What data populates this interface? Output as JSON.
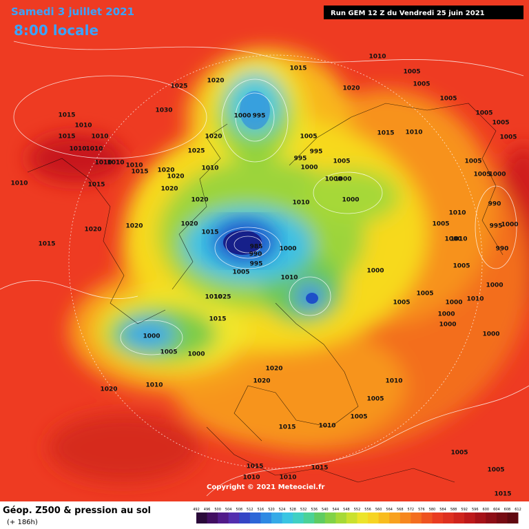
{
  "header": {
    "valid_date": "Samedi 3 juillet 2021",
    "valid_time": "8:00 locale",
    "run": "Run GEM 12 Z du Vendredi 25 juin 2021"
  },
  "copyright": "Copyright © 2021 Meteociel.fr",
  "legend": {
    "title": "Géop. Z500 & pression au sol",
    "lead_time": "(+ 186h)",
    "scale": [
      492,
      496,
      500,
      504,
      508,
      512,
      516,
      520,
      524,
      528,
      532,
      536,
      540,
      544,
      548,
      552,
      556,
      560,
      564,
      568,
      572,
      576,
      580,
      584,
      588,
      592,
      596,
      600,
      604,
      608,
      612
    ]
  },
  "isobar_labels": [
    "1010",
    "1015",
    "1020",
    "1025",
    "1005",
    "1005",
    "1005",
    "1020",
    "1030",
    "1000",
    "995",
    "1015",
    "1010",
    "1010",
    "1015",
    "1010",
    "1010",
    "1005",
    "1020",
    "1015",
    "1010",
    "1005",
    "1005",
    "1005",
    "995",
    "995",
    "1005",
    "1000",
    "1025",
    "1010",
    "1010",
    "1010",
    "1015",
    "1020",
    "1020",
    "1010",
    "1010",
    "1015",
    "1020",
    "1000",
    "1000",
    "1005",
    "1005",
    "1000",
    "1020",
    "1000",
    "1010",
    "990",
    "1020",
    "1020",
    "1020",
    "1010",
    "1005",
    "1000",
    "995",
    "1015",
    "1015",
    "985",
    "990",
    "1000",
    "1000",
    "1010",
    "990",
    "995",
    "1005",
    "1000",
    "1005",
    "1010",
    "1000",
    "1010",
    "1025",
    "1005",
    "1005",
    "1000",
    "1010",
    "1015",
    "1000",
    "1000",
    "1000",
    "1000",
    "1005",
    "1000",
    "1020",
    "1020",
    "1010",
    "1020",
    "1010",
    "1005",
    "1005",
    "1010",
    "1015",
    "1005",
    "1015",
    "1015",
    "1010",
    "1010",
    "1005",
    "1015"
  ]
}
